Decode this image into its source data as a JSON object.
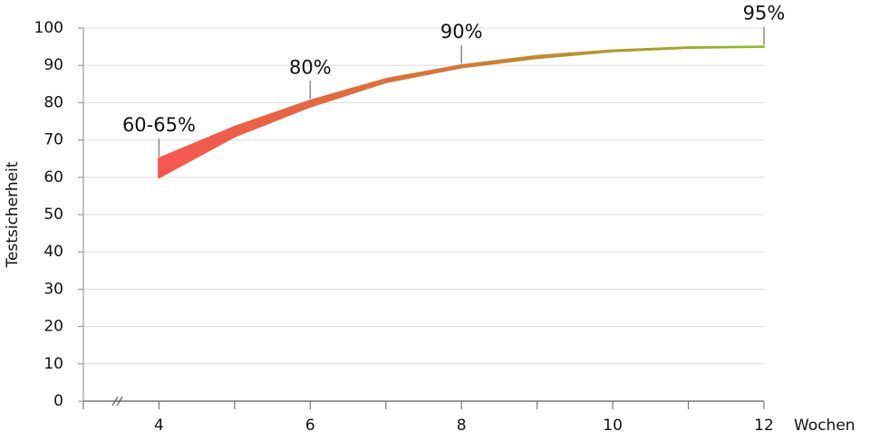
{
  "chart_data": {
    "type": "band",
    "x": [
      4,
      5,
      6,
      7,
      8,
      9,
      10,
      11,
      12
    ],
    "lower": [
      60,
      71,
      79,
      85.5,
      89.5,
      92,
      93.8,
      94.7,
      95
    ],
    "upper": [
      65,
      73.5,
      80.5,
      86.3,
      90,
      92.5,
      94,
      94.8,
      95
    ],
    "color_gradient": [
      "#f65650",
      "#cf7a35",
      "#8cbc24"
    ],
    "xlim": [
      3,
      12
    ],
    "xticks": [
      4,
      6,
      8,
      10,
      12
    ],
    "xticks_minor": [
      3,
      5,
      7,
      9,
      11
    ],
    "ylim": [
      0,
      100
    ],
    "yticks": [
      0,
      10,
      20,
      30,
      40,
      50,
      60,
      70,
      80,
      90,
      100
    ],
    "grid": true,
    "xlabel": "Wochen",
    "ylabel": "Testsicherheit",
    "annotations": [
      {
        "text": "60-65%",
        "x": 4
      },
      {
        "text": "80%",
        "x": 6
      },
      {
        "text": "90%",
        "x": 8
      },
      {
        "text": "95%",
        "x": 12
      }
    ]
  }
}
